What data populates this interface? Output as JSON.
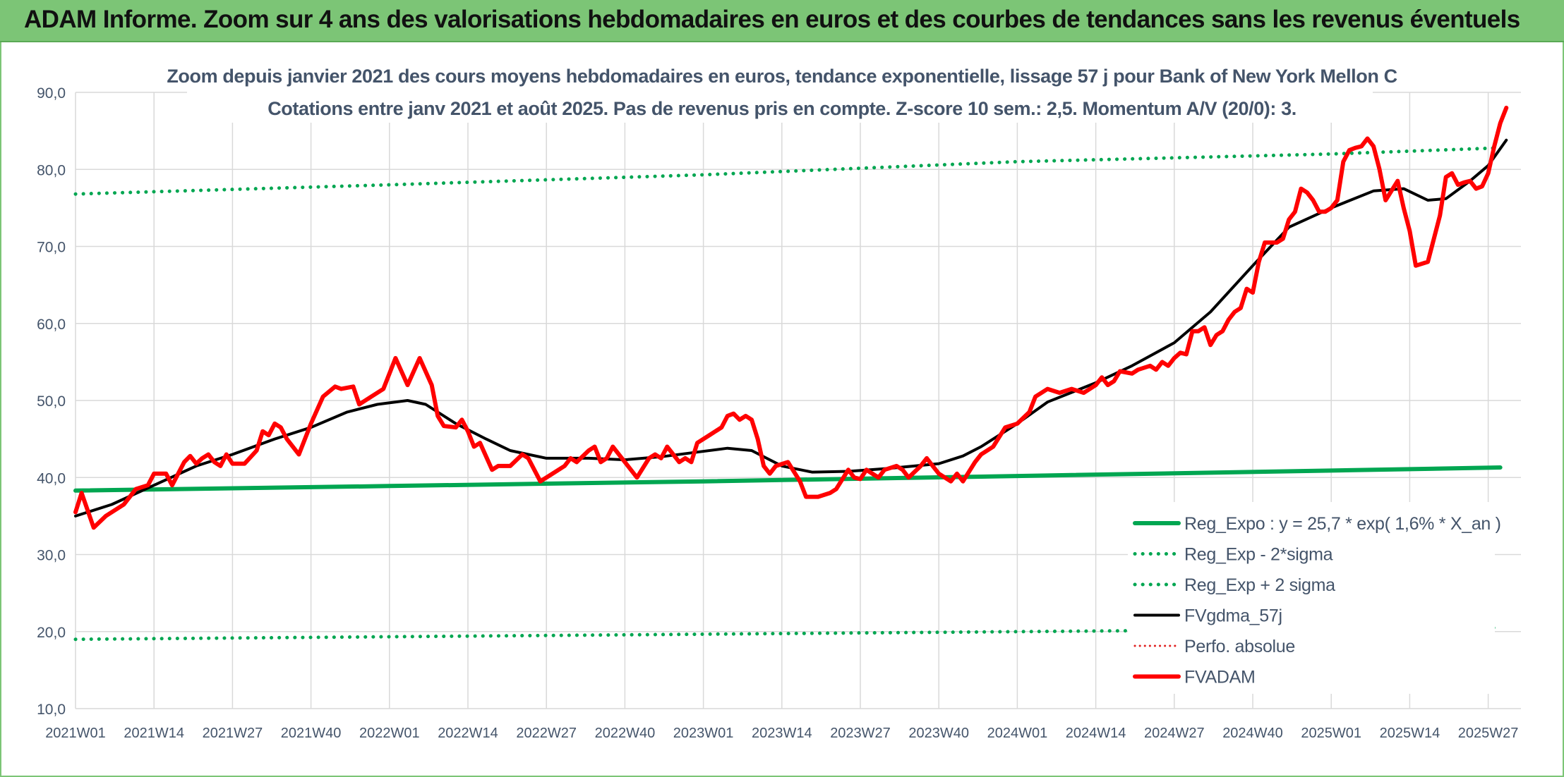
{
  "banner": {
    "title": "ADAM Informe. Zoom sur 4 ans des valorisations hebdomadaires en euros et des courbes de tendances sans les revenus éventuels"
  },
  "chart_data": {
    "type": "line",
    "title_line1": "Zoom depuis janvier 2021 des cours moyens hebdomadaires en euros, tendance exponentielle, lissage 57 j pour Bank of New York Mellon C",
    "title_line2": "Cotations entre janv 2021 et août 2025. Pas de revenus pris en compte. Z-score 10 sem.: 2,5. Momentum A/V (20/0): 3.",
    "x_labels": [
      "2021W01",
      "2021W14",
      "2021W27",
      "2021W40",
      "2022W01",
      "2022W14",
      "2022W27",
      "2022W40",
      "2023W01",
      "2023W14",
      "2023W27",
      "2023W40",
      "2024W01",
      "2024W14",
      "2024W27",
      "2024W40",
      "2025W01",
      "2025W14",
      "2025W27"
    ],
    "ylim": [
      10,
      90
    ],
    "y_ticks": [
      "10,0",
      "20,0",
      "30,0",
      "40,0",
      "50,0",
      "60,0",
      "70,0",
      "80,0",
      "90,0"
    ],
    "grid": true,
    "legend_position": "bottom-right",
    "colors": {
      "reg_expo": "#00a651",
      "fvgdma": "#000000",
      "perfo": "#e02020",
      "fvadam": "#ff0000",
      "grid": "#d9d9d9",
      "axis_text": "#44546a"
    },
    "series": [
      {
        "key": "reg_expo",
        "name": "Reg_Expo : y = 25,7 * exp( 1,6% *  X_an )",
        "style": "solid-thick",
        "points": [
          [
            0,
            38.3
          ],
          [
            52,
            38.9
          ],
          [
            104,
            39.5
          ],
          [
            156,
            40.2
          ],
          [
            208,
            40.9
          ],
          [
            236,
            41.3
          ]
        ]
      },
      {
        "key": "reg_low",
        "name": "Reg_Exp - 2*sigma",
        "style": "dotted-green",
        "points": [
          [
            0,
            19.0
          ],
          [
            236,
            20.5
          ]
        ]
      },
      {
        "key": "reg_high",
        "name": "Reg_Exp + 2 sigma",
        "style": "dotted-green",
        "points": [
          [
            0,
            76.8
          ],
          [
            52,
            78.0
          ],
          [
            104,
            79.3
          ],
          [
            156,
            81.0
          ],
          [
            208,
            82.0
          ],
          [
            236,
            82.8
          ]
        ]
      },
      {
        "key": "fvgdma",
        "name": "FVgdma_57j",
        "style": "solid-black",
        "points": [
          [
            0,
            35
          ],
          [
            6,
            36.5
          ],
          [
            13,
            39
          ],
          [
            20,
            41.5
          ],
          [
            26,
            43
          ],
          [
            33,
            45
          ],
          [
            39,
            46.5
          ],
          [
            45,
            48.5
          ],
          [
            50,
            49.5
          ],
          [
            55,
            50
          ],
          [
            58,
            49.5
          ],
          [
            63,
            47
          ],
          [
            68,
            45
          ],
          [
            72,
            43.5
          ],
          [
            78,
            42.5
          ],
          [
            85,
            42.5
          ],
          [
            91,
            42.3
          ],
          [
            97,
            42.7
          ],
          [
            103,
            43.3
          ],
          [
            108,
            43.8
          ],
          [
            112,
            43.5
          ],
          [
            117,
            41.5
          ],
          [
            122,
            40.7
          ],
          [
            128,
            40.8
          ],
          [
            135,
            41.2
          ],
          [
            143,
            41.8
          ],
          [
            147,
            42.8
          ],
          [
            150,
            44
          ],
          [
            156,
            47
          ],
          [
            161,
            49.8
          ],
          [
            169,
            52.3
          ],
          [
            175,
            54.5
          ],
          [
            182,
            57.5
          ],
          [
            188,
            61.5
          ],
          [
            195,
            67.5
          ],
          [
            201,
            72.5
          ],
          [
            208,
            75
          ],
          [
            215,
            77.2
          ],
          [
            220,
            77.5
          ],
          [
            224,
            76
          ],
          [
            227,
            76.2
          ],
          [
            231,
            78.5
          ],
          [
            234,
            80.5
          ],
          [
            237,
            83.8
          ]
        ]
      },
      {
        "key": "perfo",
        "name": "Perfo. absolue",
        "style": "dotted-red",
        "points": []
      },
      {
        "key": "fvadam",
        "name": "FVADAM",
        "style": "solid-red-thick",
        "points": [
          [
            0,
            35.5
          ],
          [
            1,
            38
          ],
          [
            3,
            33.5
          ],
          [
            5,
            35
          ],
          [
            8,
            36.5
          ],
          [
            10,
            38.5
          ],
          [
            12,
            39
          ],
          [
            13,
            40.5
          ],
          [
            15,
            40.5
          ],
          [
            16,
            39
          ],
          [
            18,
            42
          ],
          [
            19,
            42.8
          ],
          [
            20,
            41.8
          ],
          [
            21,
            42.5
          ],
          [
            22,
            43
          ],
          [
            23,
            42
          ],
          [
            24,
            41.5
          ],
          [
            25,
            43
          ],
          [
            26,
            41.8
          ],
          [
            28,
            41.8
          ],
          [
            30,
            43.5
          ],
          [
            31,
            46
          ],
          [
            32,
            45.5
          ],
          [
            33,
            47
          ],
          [
            34,
            46.5
          ],
          [
            35,
            45
          ],
          [
            37,
            43
          ],
          [
            39,
            47
          ],
          [
            41,
            50.5
          ],
          [
            43,
            51.8
          ],
          [
            44,
            51.5
          ],
          [
            46,
            51.8
          ],
          [
            47,
            49.5
          ],
          [
            49,
            50.5
          ],
          [
            51,
            51.5
          ],
          [
            53,
            55.5
          ],
          [
            55,
            52
          ],
          [
            57,
            55.5
          ],
          [
            59,
            52
          ],
          [
            60,
            48
          ],
          [
            61,
            46.7
          ],
          [
            63,
            46.5
          ],
          [
            64,
            47.5
          ],
          [
            65,
            46
          ],
          [
            66,
            44
          ],
          [
            67,
            44.5
          ],
          [
            69,
            41
          ],
          [
            70,
            41.5
          ],
          [
            72,
            41.5
          ],
          [
            74,
            43
          ],
          [
            75,
            42.5
          ],
          [
            77,
            39.5
          ],
          [
            79,
            40.5
          ],
          [
            81,
            41.5
          ],
          [
            82,
            42.5
          ],
          [
            83,
            42
          ],
          [
            85,
            43.5
          ],
          [
            86,
            44
          ],
          [
            87,
            42
          ],
          [
            88,
            42.5
          ],
          [
            89,
            44
          ],
          [
            91,
            42
          ],
          [
            93,
            40
          ],
          [
            95,
            42.5
          ],
          [
            96,
            43
          ],
          [
            97,
            42.5
          ],
          [
            98,
            44
          ],
          [
            100,
            42
          ],
          [
            101,
            42.5
          ],
          [
            102,
            42
          ],
          [
            103,
            44.5
          ],
          [
            105,
            45.5
          ],
          [
            107,
            46.5
          ],
          [
            108,
            48
          ],
          [
            109,
            48.3
          ],
          [
            110,
            47.5
          ],
          [
            111,
            48
          ],
          [
            112,
            47.5
          ],
          [
            113,
            45
          ],
          [
            114,
            41.5
          ],
          [
            115,
            40.5
          ],
          [
            116,
            41.5
          ],
          [
            118,
            42
          ],
          [
            120,
            39.5
          ],
          [
            121,
            37.5
          ],
          [
            123,
            37.5
          ],
          [
            125,
            38
          ],
          [
            126,
            38.5
          ],
          [
            128,
            41
          ],
          [
            129,
            40
          ],
          [
            130,
            39.8
          ],
          [
            131,
            41
          ],
          [
            132,
            40.5
          ],
          [
            133,
            40
          ],
          [
            134,
            41
          ],
          [
            136,
            41.5
          ],
          [
            137,
            41
          ],
          [
            138,
            40
          ],
          [
            140,
            41.5
          ],
          [
            141,
            42.5
          ],
          [
            142,
            41.5
          ],
          [
            143,
            40.5
          ],
          [
            144,
            40
          ],
          [
            145,
            39.5
          ],
          [
            146,
            40.5
          ],
          [
            147,
            39.5
          ],
          [
            149,
            42
          ],
          [
            150,
            43
          ],
          [
            152,
            44
          ],
          [
            154,
            46.5
          ],
          [
            156,
            47
          ],
          [
            158,
            48.5
          ],
          [
            159,
            50.5
          ],
          [
            160,
            51
          ],
          [
            161,
            51.5
          ],
          [
            163,
            51
          ],
          [
            165,
            51.5
          ],
          [
            167,
            51
          ],
          [
            169,
            52
          ],
          [
            170,
            53
          ],
          [
            171,
            52
          ],
          [
            172,
            52.5
          ],
          [
            173,
            53.8
          ],
          [
            175,
            53.5
          ],
          [
            176,
            54
          ],
          [
            178,
            54.5
          ],
          [
            179,
            54
          ],
          [
            180,
            55
          ],
          [
            181,
            54.5
          ],
          [
            182,
            55.5
          ],
          [
            183,
            56.2
          ],
          [
            184,
            56
          ],
          [
            185,
            59
          ],
          [
            186,
            59
          ],
          [
            187,
            59.5
          ],
          [
            188,
            57.2
          ],
          [
            189,
            58.5
          ],
          [
            190,
            59
          ],
          [
            191,
            60.5
          ],
          [
            192,
            61.5
          ],
          [
            193,
            62
          ],
          [
            194,
            64.5
          ],
          [
            195,
            64
          ],
          [
            196,
            68
          ],
          [
            197,
            70.5
          ],
          [
            199,
            70.5
          ],
          [
            200,
            71
          ],
          [
            201,
            73.5
          ],
          [
            202,
            74.5
          ],
          [
            203,
            77.5
          ],
          [
            204,
            77
          ],
          [
            205,
            76
          ],
          [
            206,
            74.5
          ],
          [
            207,
            74.5
          ],
          [
            208,
            75
          ],
          [
            209,
            76
          ],
          [
            210,
            81
          ],
          [
            211,
            82.5
          ],
          [
            212,
            82.8
          ],
          [
            213,
            83
          ],
          [
            214,
            84
          ],
          [
            215,
            83
          ],
          [
            216,
            80
          ],
          [
            217,
            76
          ],
          [
            219,
            78.5
          ],
          [
            220,
            75
          ],
          [
            221,
            72
          ],
          [
            222,
            67.5
          ],
          [
            224,
            68
          ],
          [
            226,
            74
          ],
          [
            227,
            79
          ],
          [
            228,
            79.5
          ],
          [
            229,
            78
          ],
          [
            230,
            78.3
          ],
          [
            231,
            78.5
          ],
          [
            232,
            77.5
          ],
          [
            233,
            77.8
          ],
          [
            234,
            79.5
          ],
          [
            235,
            83
          ],
          [
            236,
            86
          ],
          [
            237,
            88
          ]
        ]
      }
    ]
  }
}
